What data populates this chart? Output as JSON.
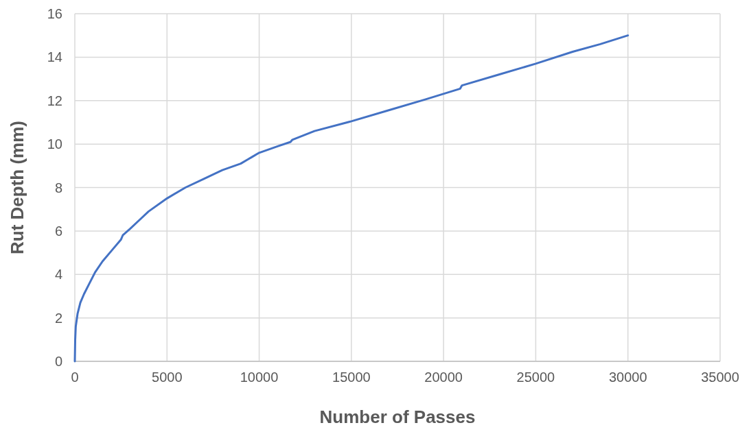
{
  "chart_data": {
    "type": "line",
    "xlabel": "Number of Passes",
    "ylabel": "Rut Depth (mm)",
    "x": [
      0,
      20,
      50,
      150,
      300,
      500,
      800,
      1100,
      1500,
      2000,
      2500,
      2600,
      3000,
      3500,
      4000,
      5000,
      6000,
      7000,
      8000,
      9000,
      9400,
      9600,
      10000,
      11000,
      11700,
      11800,
      13000,
      15000,
      17000,
      19000,
      20900,
      21000,
      23000,
      25000,
      27000,
      28500,
      30000
    ],
    "series": [
      {
        "color": "#4472c4",
        "values": [
          0,
          1,
          1.6,
          2.2,
          2.7,
          3.1,
          3.6,
          4.1,
          4.6,
          5.1,
          5.6,
          5.8,
          6.1,
          6.5,
          6.9,
          7.5,
          8,
          8.4,
          8.8,
          9.1,
          9.3,
          9.4,
          9.6,
          9.9,
          10.1,
          10.2,
          10.6,
          11.05,
          11.55,
          12.05,
          12.55,
          12.7,
          13.2,
          13.7,
          14.25,
          14.6,
          15
        ]
      }
    ],
    "xlim": [
      0,
      35000
    ],
    "xticks": [
      0,
      5000,
      10000,
      15000,
      20000,
      25000,
      30000,
      35000
    ],
    "ylim": [
      0,
      16
    ],
    "yticks": [
      0,
      2,
      4,
      6,
      8,
      10,
      12,
      14,
      16
    ],
    "grid": true,
    "marker": "none",
    "line_style": "solid"
  }
}
